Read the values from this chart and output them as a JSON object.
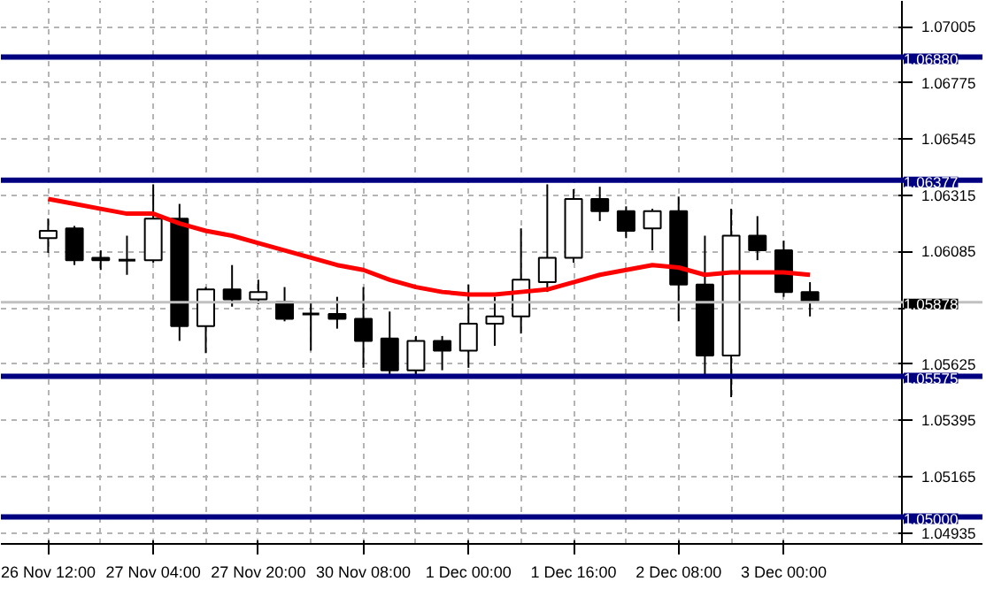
{
  "chart_data": {
    "type": "candlestick",
    "categories": [
      "26 Nov 12:00",
      null,
      null,
      null,
      "27 Nov 04:00",
      null,
      null,
      null,
      "27 Nov 20:00",
      null,
      null,
      null,
      "30 Nov 08:00",
      null,
      null,
      null,
      "1 Dec 00:00",
      null,
      null,
      null,
      "1 Dec 16:00",
      null,
      null,
      null,
      "2 Dec 08:00",
      null,
      null,
      null,
      "3 Dec 00:00",
      null
    ],
    "ohlc": [
      [
        1.0614,
        1.0622,
        1.0608,
        1.0617
      ],
      [
        1.0618,
        1.0619,
        1.0603,
        1.0605
      ],
      [
        1.0606,
        1.0609,
        1.0601,
        1.0605
      ],
      [
        1.0605,
        1.0615,
        1.0599,
        1.0605
      ],
      [
        1.0605,
        1.0636,
        1.0604,
        1.0622
      ],
      [
        1.0622,
        1.0628,
        1.0572,
        1.0578
      ],
      [
        1.0578,
        1.0594,
        1.0567,
        1.0593
      ],
      [
        1.0593,
        1.0603,
        1.0586,
        1.0589
      ],
      [
        1.0589,
        1.0597,
        1.0587,
        1.0592
      ],
      [
        1.0588,
        1.0594,
        1.058,
        1.0581
      ],
      [
        1.0583,
        1.0588,
        1.0568,
        1.0583
      ],
      [
        1.0583,
        1.059,
        1.0577,
        1.0581
      ],
      [
        1.0581,
        1.0594,
        1.0561,
        1.0572
      ],
      [
        1.0573,
        1.0584,
        1.0558,
        1.056
      ],
      [
        1.056,
        1.0574,
        1.0558,
        1.0572
      ],
      [
        1.0572,
        1.0574,
        1.056,
        1.0568
      ],
      [
        1.0568,
        1.0595,
        1.0561,
        1.0579
      ],
      [
        1.0579,
        1.059,
        1.057,
        1.0582
      ],
      [
        1.0582,
        1.0618,
        1.0575,
        1.0597
      ],
      [
        1.0596,
        1.0636,
        1.0592,
        1.0606
      ],
      [
        1.0606,
        1.0634,
        1.0604,
        1.063
      ],
      [
        1.063,
        1.0635,
        1.0621,
        1.0625
      ],
      [
        1.0625,
        1.0627,
        1.0614,
        1.0617
      ],
      [
        1.0618,
        1.0626,
        1.0609,
        1.0625
      ],
      [
        1.0625,
        1.0631,
        1.058,
        1.0595
      ],
      [
        1.0595,
        1.0615,
        1.0558,
        1.0566
      ],
      [
        1.0566,
        1.0626,
        1.0549,
        1.0615
      ],
      [
        1.0615,
        1.0623,
        1.0605,
        1.0609
      ],
      [
        1.0609,
        1.0613,
        1.059,
        1.0592
      ],
      [
        1.0592,
        1.0596,
        1.0582,
        1.0588
      ]
    ],
    "series": [
      {
        "type": "line",
        "color": "#ff0000",
        "values": [
          1.063,
          1.0628,
          1.0626,
          1.0624,
          1.0624,
          1.062,
          1.0617,
          1.0615,
          1.0612,
          1.0609,
          1.0606,
          1.0603,
          1.0601,
          1.0597,
          1.0594,
          1.0592,
          1.0591,
          1.0591,
          1.0592,
          1.0593,
          1.0596,
          1.0599,
          1.0601,
          1.0603,
          1.0602,
          1.0599,
          1.06,
          1.06,
          1.06,
          1.0599
        ]
      }
    ],
    "ylim": [
      1.0489,
      1.0711
    ],
    "yticks": [
      1.07005,
      1.06775,
      1.06545,
      1.06315,
      1.06085,
      {
        "value": 1.05855,
        "label": null
      },
      1.05625,
      1.05395,
      1.05165,
      1.04935
    ],
    "ref_lines": [
      {
        "axis": "y",
        "value": 1.0688,
        "label": "1.06880",
        "color": "#000080"
      },
      {
        "axis": "y",
        "value": 1.06377,
        "label": "1.06377",
        "color": "#000080"
      },
      {
        "axis": "y",
        "value": 1.05878,
        "label": "1.05878",
        "color": "#c0c0c0"
      },
      {
        "axis": "y",
        "value": 1.05575,
        "label": "1.05575",
        "color": "#000080"
      },
      {
        "axis": "y",
        "value": 1.05,
        "label": "1.05000",
        "color": "#000080"
      }
    ],
    "grid": true
  }
}
